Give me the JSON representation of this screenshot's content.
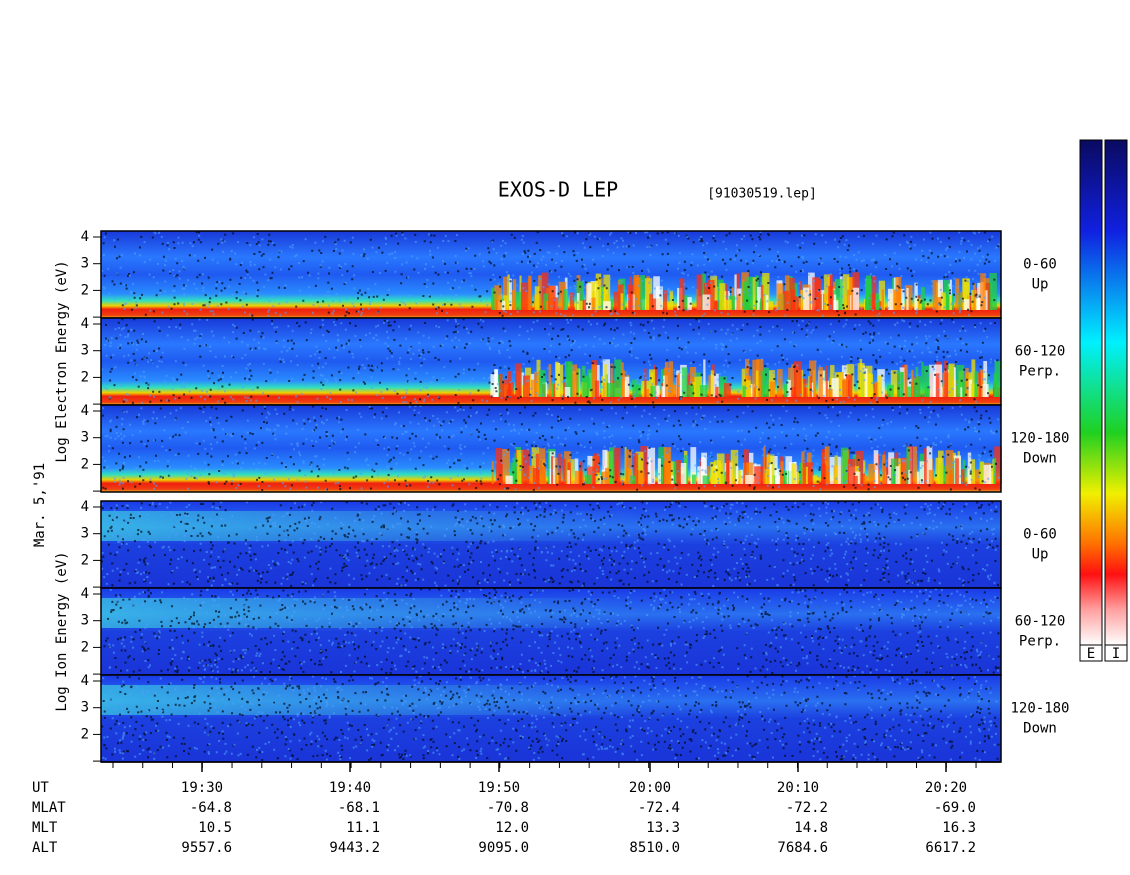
{
  "header": {
    "title": "EXOS-D LEP",
    "file": "[91030519.lep]"
  },
  "date": "Mar. 5,'91",
  "groups": [
    {
      "axis_label": "Log  Electron  Energy (eV)",
      "panels": [
        {
          "range": "0-60",
          "direction": "Up"
        },
        {
          "range": "60-120",
          "direction": "Perp."
        },
        {
          "range": "120-180",
          "direction": "Down"
        }
      ]
    },
    {
      "axis_label": "Log  Ion  Energy (eV)",
      "panels": [
        {
          "range": "0-60",
          "direction": "Up"
        },
        {
          "range": "60-120",
          "direction": "Perp."
        },
        {
          "range": "120-180",
          "direction": "Down"
        }
      ]
    }
  ],
  "energy_ticks": [
    "4",
    "3",
    "2"
  ],
  "ephemeris": {
    "rows": [
      {
        "name": "UT",
        "values": [
          "19:30",
          "19:40",
          "19:50",
          "20:00",
          "20:10",
          "20:20"
        ]
      },
      {
        "name": "MLAT",
        "values": [
          "-64.8",
          "-68.1",
          "-70.8",
          "-72.4",
          "-72.2",
          "-69.0"
        ]
      },
      {
        "name": "MLT",
        "values": [
          "10.5",
          "11.1",
          "12.0",
          "13.3",
          "14.8",
          "16.3"
        ]
      },
      {
        "name": "ALT",
        "values": [
          "9557.6",
          "9443.2",
          "9095.0",
          "8510.0",
          "7684.6",
          "6617.2"
        ]
      }
    ]
  },
  "colorbar": {
    "labels": [
      "E",
      "I"
    ]
  }
}
